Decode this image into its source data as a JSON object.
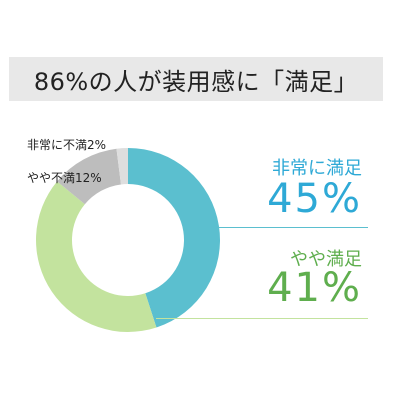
{
  "title": "86%の人が装用感に「満足」",
  "colors": {
    "very_satisfied": "#5bbfcf",
    "somewhat_satisfied": "#c3e39e",
    "somewhat_dissatisfied": "#bdbdbd",
    "very_dissatisfied": "#dedede",
    "very_satisfied_text": "#2ea9d6",
    "somewhat_satisfied_text": "#5fae4e"
  },
  "chart_data": {
    "type": "pie",
    "donut": true,
    "title": "86%の人が装用感に「満足」",
    "series": [
      {
        "name": "",
        "values": [
          45,
          41,
          12,
          2
        ]
      }
    ],
    "categories": [
      "非常に満足",
      "やや満足",
      "やや不満",
      "非常に不満"
    ],
    "labels": {
      "very_satisfied": "非常に満足",
      "very_satisfied_value": "45%",
      "somewhat_satisfied": "やや満足",
      "somewhat_satisfied_value": "41%",
      "somewhat_dissatisfied": "やや不満12%",
      "very_dissatisfied": "非常に不満2%"
    },
    "legend": "none"
  }
}
